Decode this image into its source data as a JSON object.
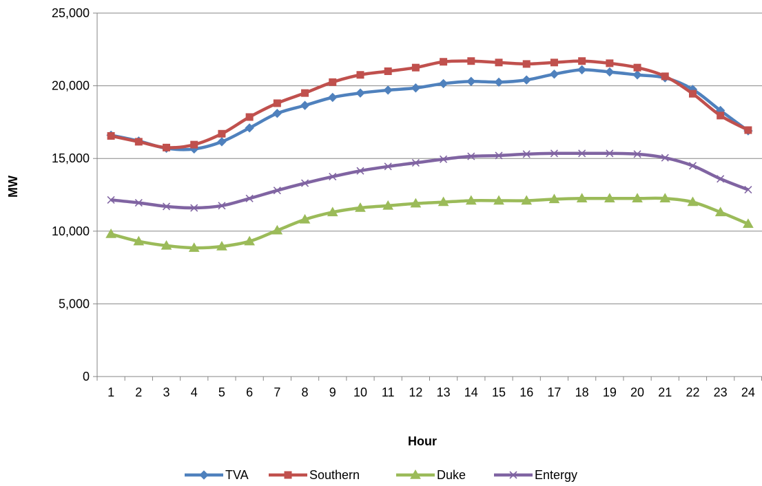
{
  "chart_data": {
    "type": "line",
    "xlabel": "Hour",
    "ylabel": "MW",
    "ylim": [
      0,
      25000
    ],
    "yticks": [
      0,
      5000,
      10000,
      15000,
      20000,
      25000
    ],
    "ytick_labels": [
      "0",
      "5,000",
      "10,000",
      "15,000",
      "20,000",
      "25,000"
    ],
    "categories": [
      "1",
      "2",
      "3",
      "4",
      "5",
      "6",
      "7",
      "8",
      "9",
      "10",
      "11",
      "12",
      "13",
      "14",
      "15",
      "16",
      "17",
      "18",
      "19",
      "20",
      "21",
      "22",
      "23",
      "24"
    ],
    "grid": true,
    "legend_position": "bottom",
    "series": [
      {
        "name": "TVA",
        "color": "#4F81BD",
        "marker": "diamond",
        "values": [
          16600,
          16200,
          15700,
          15650,
          16150,
          17100,
          18100,
          18650,
          19200,
          19500,
          19700,
          19850,
          20150,
          20300,
          20250,
          20400,
          20800,
          21100,
          20950,
          20750,
          20550,
          19750,
          18300,
          16900
        ]
      },
      {
        "name": "Southern",
        "color": "#C0504D",
        "marker": "square",
        "values": [
          16550,
          16150,
          15750,
          15950,
          16700,
          17850,
          18800,
          19500,
          20250,
          20750,
          21000,
          21250,
          21650,
          21700,
          21600,
          21500,
          21600,
          21700,
          21550,
          21250,
          20650,
          19450,
          17950,
          16950
        ]
      },
      {
        "name": "Duke",
        "color": "#9BBB59",
        "marker": "triangle",
        "values": [
          9800,
          9300,
          9000,
          8850,
          8950,
          9300,
          10050,
          10800,
          11300,
          11600,
          11750,
          11900,
          12000,
          12100,
          12100,
          12100,
          12200,
          12250,
          12250,
          12250,
          12250,
          12000,
          11300,
          10500
        ]
      },
      {
        "name": "Entergy",
        "color": "#8064A2",
        "marker": "x",
        "values": [
          12150,
          11950,
          11700,
          11600,
          11750,
          12250,
          12800,
          13300,
          13750,
          14150,
          14450,
          14700,
          14950,
          15150,
          15200,
          15300,
          15350,
          15350,
          15350,
          15300,
          15050,
          14500,
          13600,
          12850
        ]
      }
    ]
  }
}
